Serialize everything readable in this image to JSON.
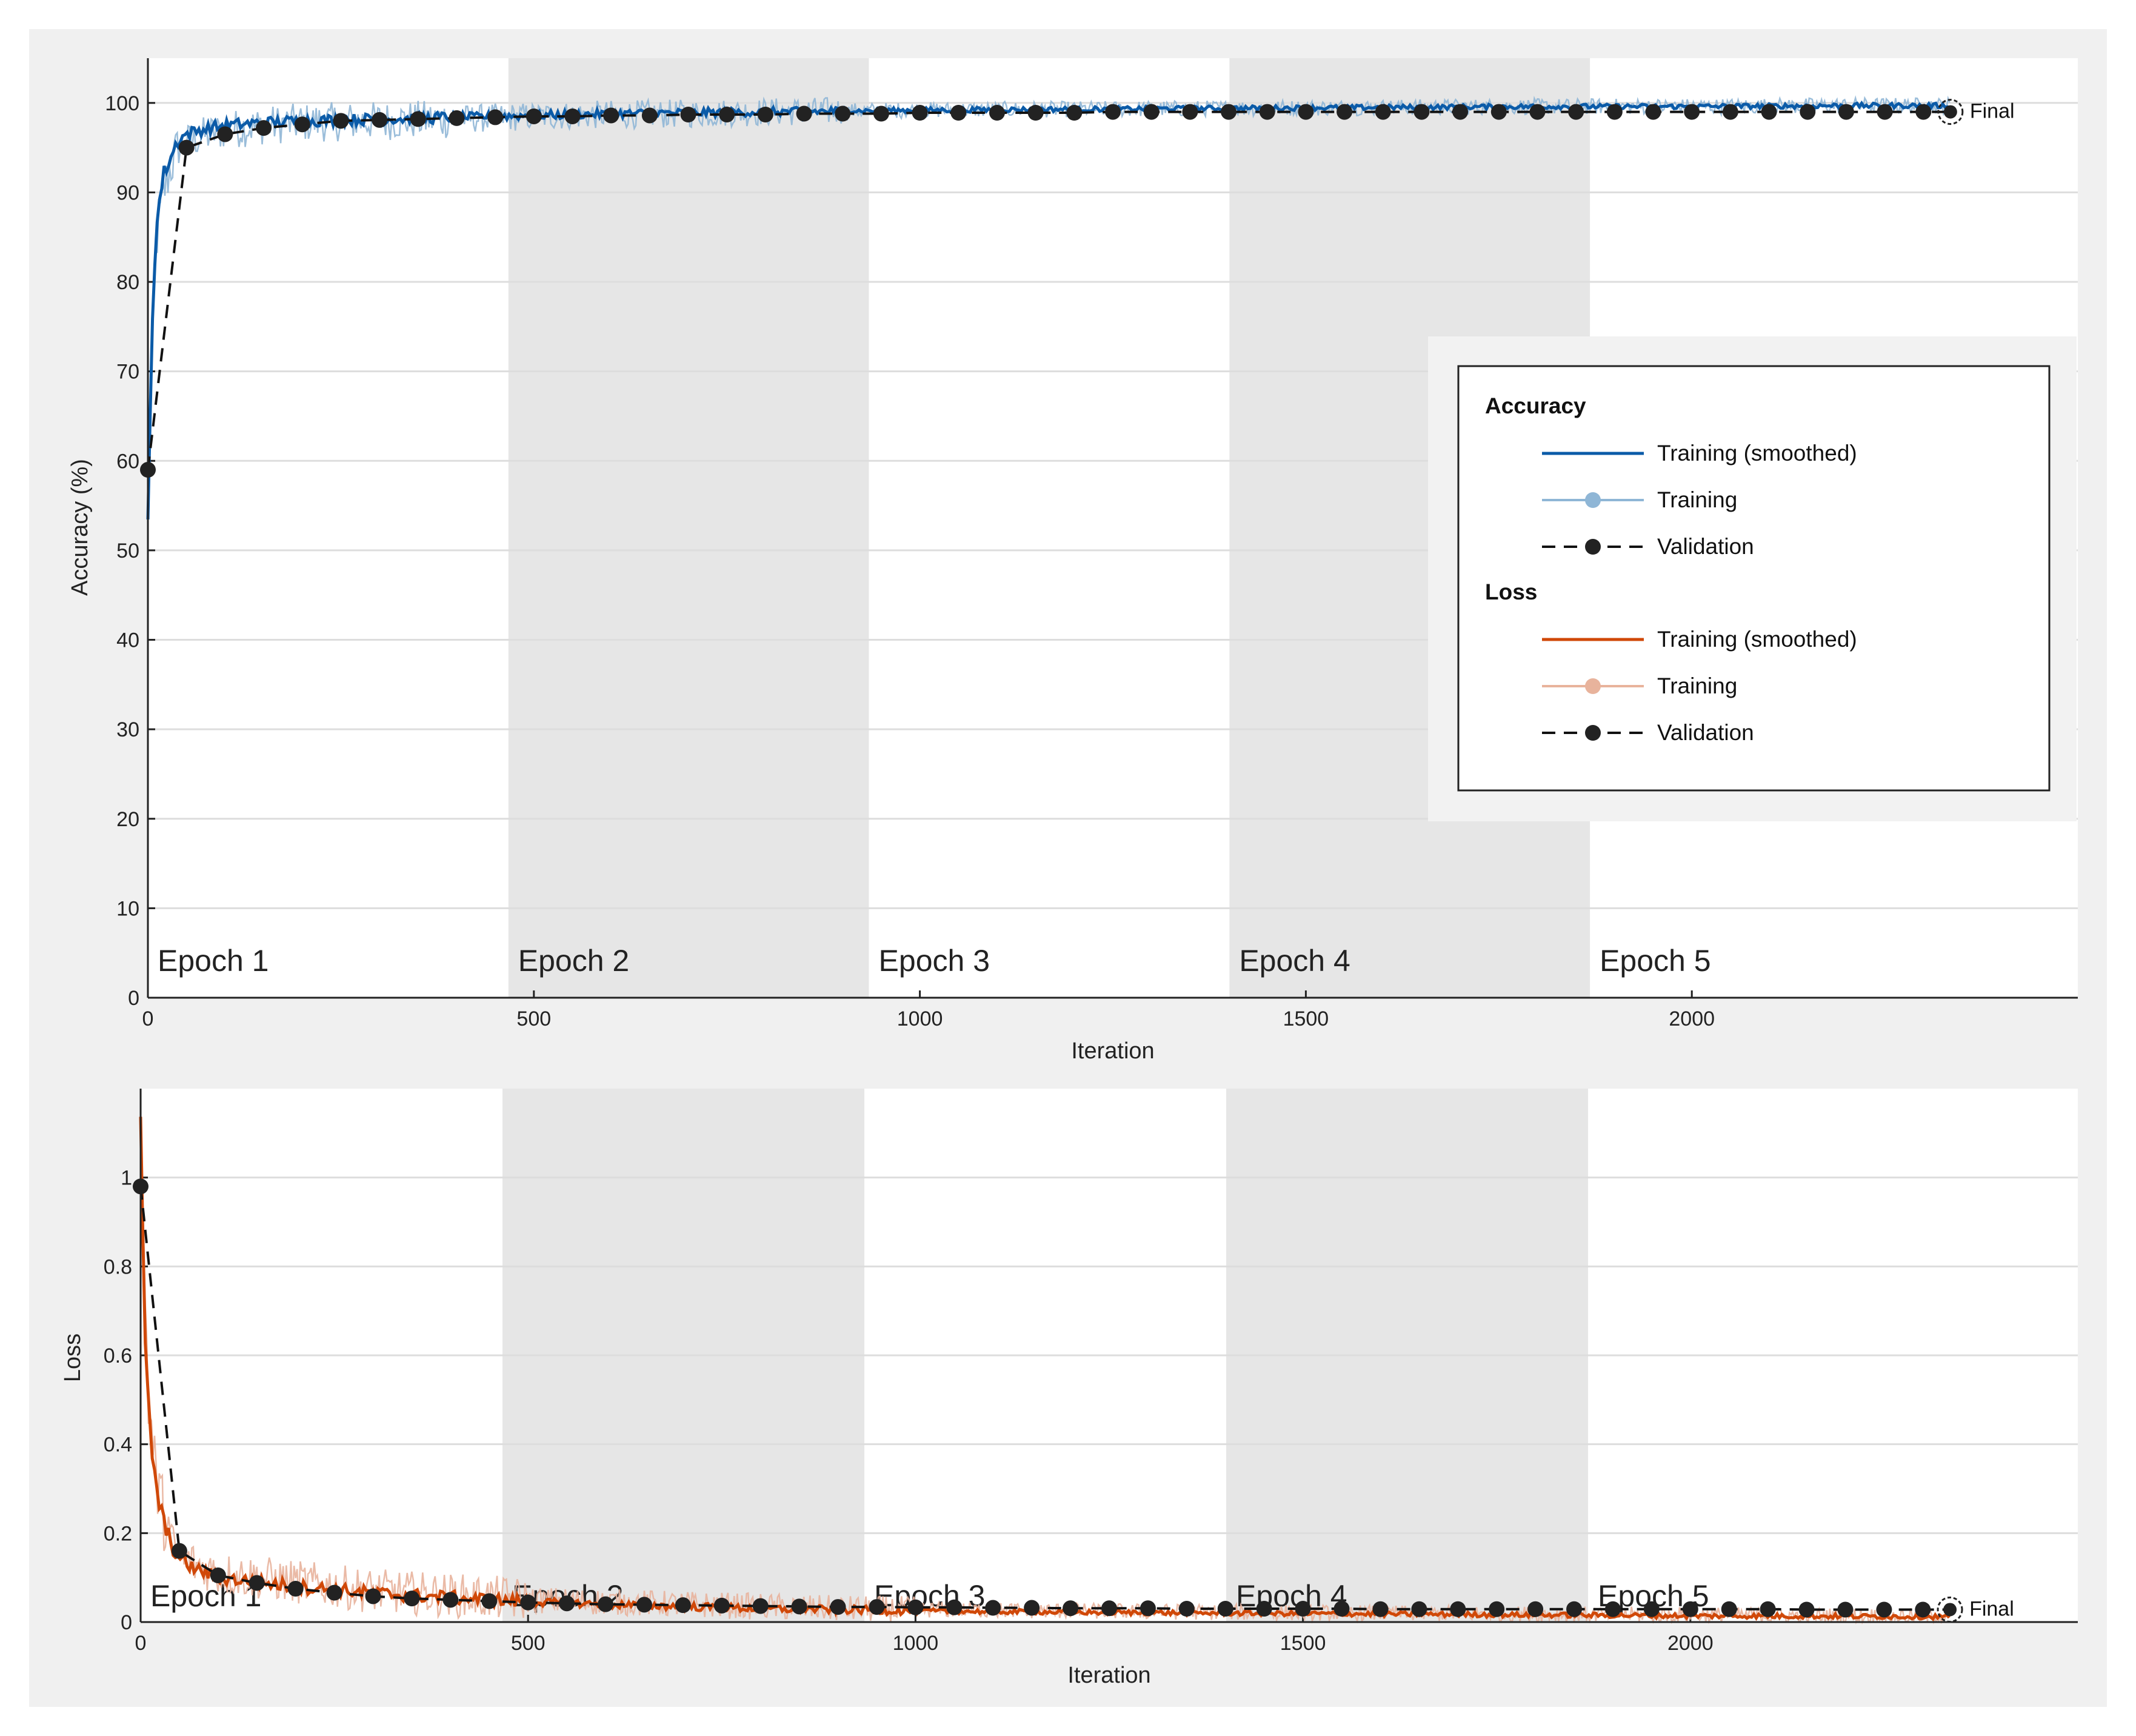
{
  "colors": {
    "acc_smoothed": "#0b5ba8",
    "acc_raw": "#8fb6d6",
    "loss_smoothed": "#d04808",
    "loss_raw": "#e8b39c",
    "validation": "#111111",
    "epoch_shade": "#e6e6e6",
    "frame": "#f0f0f0",
    "grid": "#dddddd"
  },
  "chart_data": [
    {
      "type": "line",
      "xlabel": "Iteration",
      "ylabel": "Accuracy (%)",
      "xlim": [
        0,
        2500
      ],
      "ylim": [
        0,
        105
      ],
      "xticks": [
        "0",
        "500",
        "1000",
        "1500",
        "2000"
      ],
      "yticks": [
        "0",
        "10",
        "20",
        "30",
        "40",
        "50",
        "60",
        "70",
        "80",
        "90",
        "100"
      ],
      "grid": true,
      "epoch_boundaries": [
        0,
        467,
        934,
        1401,
        1868,
        2335
      ],
      "epoch_labels": [
        "Epoch 1",
        "Epoch 2",
        "Epoch 3",
        "Epoch 4",
        "Epoch 5"
      ],
      "final_label": "Final",
      "series": [
        {
          "name": "Training (smoothed)",
          "x": [
            0,
            5,
            10,
            15,
            20,
            30,
            40,
            50,
            60,
            80,
            100,
            150,
            200,
            300,
            400,
            500,
            600,
            700,
            800,
            900,
            1000,
            1200,
            1400,
            1600,
            1800,
            2000,
            2200,
            2335
          ],
          "y": [
            53,
            74,
            85,
            89,
            92,
            94,
            96,
            96.5,
            96.8,
            97.2,
            97.5,
            97.8,
            98,
            98.2,
            98.4,
            98.6,
            98.8,
            98.9,
            99.0,
            99.1,
            99.2,
            99.3,
            99.4,
            99.5,
            99.6,
            99.6,
            99.7,
            99.7
          ]
        },
        {
          "name": "Training",
          "x": [
            0,
            10,
            20,
            30,
            40,
            50,
            60,
            80,
            100,
            150,
            200,
            300,
            400,
            500,
            600,
            700,
            800,
            900,
            1000,
            1200,
            1400,
            1600,
            1800,
            2000,
            2200,
            2335
          ],
          "y": [
            55,
            84,
            90,
            93,
            95,
            95.5,
            96,
            96.5,
            97,
            97.5,
            97.8,
            98,
            98.2,
            98.5,
            98.7,
            98.8,
            99,
            99.1,
            99.2,
            99.3,
            99.4,
            99.5,
            99.6,
            99.6,
            99.7,
            99.7
          ]
        },
        {
          "name": "Validation",
          "x": [
            0,
            50,
            100,
            150,
            200,
            250,
            300,
            350,
            400,
            450,
            500,
            550,
            600,
            650,
            700,
            750,
            800,
            850,
            900,
            950,
            1000,
            1050,
            1100,
            1150,
            1200,
            1250,
            1300,
            1350,
            1400,
            1450,
            1500,
            1550,
            1600,
            1650,
            1700,
            1750,
            1800,
            1850,
            1900,
            1950,
            2000,
            2050,
            2100,
            2150,
            2200,
            2250,
            2300,
            2335
          ],
          "y": [
            59,
            95,
            96.5,
            97.2,
            97.6,
            98.0,
            98.1,
            98.2,
            98.3,
            98.4,
            98.5,
            98.5,
            98.6,
            98.6,
            98.7,
            98.7,
            98.7,
            98.8,
            98.8,
            98.8,
            98.9,
            98.9,
            98.9,
            98.9,
            98.9,
            99.0,
            99.0,
            99.0,
            99.0,
            99.0,
            99.0,
            99.0,
            99.0,
            99.0,
            99.0,
            99.0,
            99.0,
            99.0,
            99.0,
            99.0,
            99.0,
            99.0,
            99.0,
            99.0,
            99.0,
            99.0,
            99.0,
            99.0
          ]
        }
      ]
    },
    {
      "type": "line",
      "xlabel": "Iteration",
      "ylabel": "Loss",
      "xlim": [
        0,
        2500
      ],
      "ylim": [
        0,
        1.2
      ],
      "xticks": [
        "0",
        "500",
        "1000",
        "1500",
        "2000"
      ],
      "yticks": [
        "0",
        "0.2",
        "0.4",
        "0.6",
        "0.8",
        "1"
      ],
      "grid": true,
      "epoch_boundaries": [
        0,
        467,
        934,
        1401,
        1868,
        2335
      ],
      "epoch_labels": [
        "Epoch 1",
        "Epoch 2",
        "Epoch 3",
        "Epoch 4",
        "Epoch 5"
      ],
      "final_label": "Final",
      "series": [
        {
          "name": "Training (smoothed)",
          "x": [
            0,
            3,
            6,
            10,
            15,
            20,
            30,
            40,
            50,
            70,
            100,
            150,
            200,
            300,
            400,
            500,
            600,
            700,
            800,
            900,
            1000,
            1200,
            1400,
            1600,
            1800,
            2000,
            2200,
            2335
          ],
          "y": [
            1.15,
            0.85,
            0.62,
            0.48,
            0.38,
            0.3,
            0.22,
            0.17,
            0.14,
            0.12,
            0.1,
            0.09,
            0.08,
            0.065,
            0.055,
            0.045,
            0.04,
            0.035,
            0.03,
            0.028,
            0.025,
            0.022,
            0.02,
            0.018,
            0.016,
            0.014,
            0.013,
            0.012
          ]
        },
        {
          "name": "Training",
          "x": [
            0,
            10,
            20,
            30,
            40,
            50,
            70,
            100,
            150,
            200,
            300,
            400,
            500,
            600,
            700,
            800,
            900,
            1000,
            1200,
            1400,
            1600,
            1800,
            2000,
            2200,
            2335
          ],
          "y": [
            1.1,
            0.5,
            0.32,
            0.24,
            0.18,
            0.15,
            0.13,
            0.11,
            0.1,
            0.09,
            0.07,
            0.06,
            0.05,
            0.045,
            0.04,
            0.035,
            0.03,
            0.028,
            0.025,
            0.022,
            0.02,
            0.018,
            0.016,
            0.014,
            0.013
          ]
        },
        {
          "name": "Validation",
          "x": [
            0,
            50,
            100,
            150,
            200,
            250,
            300,
            350,
            400,
            450,
            500,
            550,
            600,
            650,
            700,
            750,
            800,
            850,
            900,
            950,
            1000,
            1050,
            1100,
            1150,
            1200,
            1250,
            1300,
            1350,
            1400,
            1450,
            1500,
            1550,
            1600,
            1650,
            1700,
            1750,
            1800,
            1850,
            1900,
            1950,
            2000,
            2050,
            2100,
            2150,
            2200,
            2250,
            2300,
            2335
          ],
          "y": [
            0.98,
            0.16,
            0.105,
            0.088,
            0.075,
            0.066,
            0.058,
            0.053,
            0.05,
            0.047,
            0.044,
            0.042,
            0.04,
            0.039,
            0.038,
            0.037,
            0.036,
            0.035,
            0.034,
            0.034,
            0.033,
            0.033,
            0.032,
            0.032,
            0.031,
            0.031,
            0.031,
            0.03,
            0.03,
            0.03,
            0.03,
            0.03,
            0.029,
            0.029,
            0.029,
            0.029,
            0.029,
            0.029,
            0.029,
            0.029,
            0.029,
            0.029,
            0.029,
            0.028,
            0.028,
            0.028,
            0.028,
            0.028
          ]
        }
      ]
    }
  ],
  "legend": {
    "placement": "right",
    "groups": [
      {
        "heading": "Accuracy",
        "entries": [
          {
            "label": "Training (smoothed)",
            "style": "solid",
            "color": "#0b5ba8"
          },
          {
            "label": "Training",
            "style": "solid-marker",
            "color": "#8fb6d6"
          },
          {
            "label": "Validation",
            "style": "dashed-marker",
            "color": "#111111"
          }
        ]
      },
      {
        "heading": "Loss",
        "entries": [
          {
            "label": "Training (smoothed)",
            "style": "solid",
            "color": "#d04808"
          },
          {
            "label": "Training",
            "style": "solid-marker",
            "color": "#e8b39c"
          },
          {
            "label": "Validation",
            "style": "dashed-marker",
            "color": "#111111"
          }
        ]
      }
    ]
  }
}
